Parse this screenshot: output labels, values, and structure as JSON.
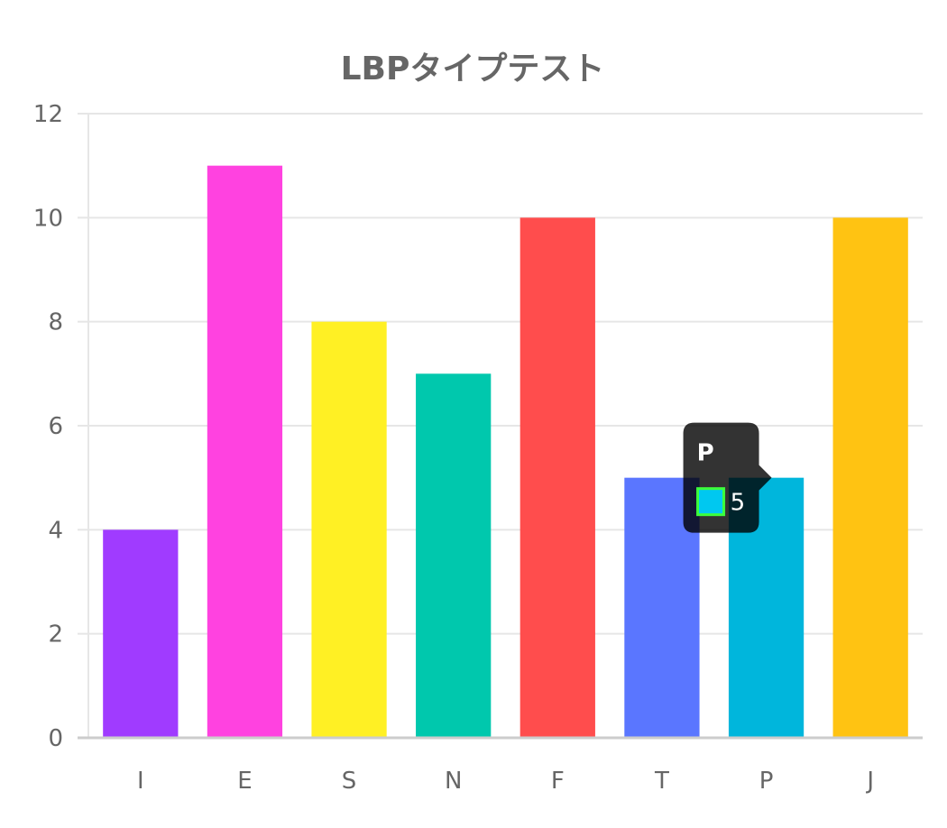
{
  "chart_data": {
    "type": "bar",
    "title": "LBPタイプテスト",
    "categories": [
      "I",
      "E",
      "S",
      "N",
      "F",
      "T",
      "P",
      "J"
    ],
    "values": [
      4,
      11,
      8,
      7,
      10,
      5,
      5,
      10
    ],
    "colors": [
      "#a03bff",
      "#ff42e0",
      "#fff024",
      "#00c8ad",
      "#ff4d4d",
      "#5a76ff",
      "#00b6dc",
      "#ffc312"
    ],
    "ylim": [
      0,
      12
    ],
    "yticks": [
      0,
      2,
      4,
      6,
      8,
      10,
      12
    ],
    "grid": true,
    "legend": "none"
  },
  "tooltip": {
    "category": "P",
    "value": "5",
    "swatch_color": "#00c8f0",
    "swatch_border": "#3cff3c"
  },
  "colors": {
    "text": "#666666",
    "grid": "#e6e6e6",
    "axis": "#cccccc",
    "tooltip_bg": "#000000"
  }
}
